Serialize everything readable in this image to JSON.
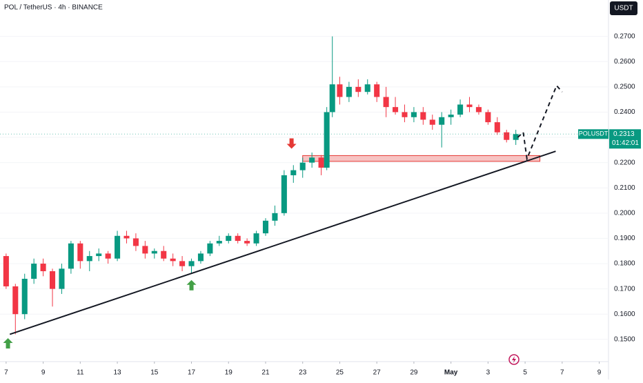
{
  "chart_data": {
    "type": "candlestick",
    "title": "POL / TetherUS · 4h · BINANCE",
    "currency": "USDT",
    "symbol": "POLUSDT",
    "last_price": {
      "value": 0.2313,
      "label": "0.2313"
    },
    "countdown": "01:42:01",
    "up_color": "#089981",
    "down_color": "#f23645",
    "xlim": [
      6.67,
      39.5
    ],
    "xticks": [
      7,
      9,
      11,
      13,
      15,
      17,
      19,
      21,
      23,
      25,
      27,
      29,
      {
        "value": 31,
        "label": "May"
      },
      {
        "value": 33,
        "label": "3"
      },
      {
        "value": 35,
        "label": "5"
      },
      {
        "value": 37,
        "label": "7"
      },
      {
        "value": 39,
        "label": "9"
      }
    ],
    "ylim": [
      0.1412,
      0.2844
    ],
    "yticks": [
      {
        "value": 0.15,
        "label": "0.1500"
      },
      {
        "value": 0.16,
        "label": "0.1600"
      },
      {
        "value": 0.17,
        "label": "0.1700"
      },
      {
        "value": 0.18,
        "label": "0.1800"
      },
      {
        "value": 0.19,
        "label": "0.1900"
      },
      {
        "value": 0.2,
        "label": "0.2000"
      },
      {
        "value": 0.21,
        "label": "0.2100"
      },
      {
        "value": 0.22,
        "label": "0.2200"
      },
      {
        "value": 0.23,
        "label": "0.2300"
      },
      {
        "value": 0.24,
        "label": "0.2400"
      },
      {
        "value": 0.25,
        "label": "0.2500"
      },
      {
        "value": 0.26,
        "label": "0.2600"
      },
      {
        "value": 0.27,
        "label": "0.2700"
      }
    ],
    "x": [
      7,
      7.5,
      8,
      8.5,
      9,
      9.5,
      10,
      10.5,
      11,
      11.5,
      12,
      12.5,
      13,
      13.5,
      14,
      14.5,
      15,
      15.5,
      16,
      16.5,
      17,
      17.5,
      18,
      18.5,
      19,
      19.5,
      20,
      20.5,
      21,
      21.5,
      22,
      22.5,
      23,
      23.5,
      24,
      24.3,
      24.6,
      25,
      25.5,
      26,
      26.5,
      27,
      27.5,
      28,
      28.5,
      29,
      29.5,
      30,
      30.5,
      31,
      31.5,
      32,
      32.5,
      33,
      33.5,
      34,
      34.5
    ],
    "open": [
      0.183,
      0.171,
      0.16,
      0.174,
      0.18,
      0.177,
      0.17,
      0.178,
      0.188,
      0.181,
      0.183,
      0.184,
      0.182,
      0.191,
      0.19,
      0.187,
      0.184,
      0.185,
      0.182,
      0.181,
      0.179,
      0.181,
      0.184,
      0.188,
      0.189,
      0.191,
      0.189,
      0.188,
      0.192,
      0.197,
      0.2,
      0.215,
      0.217,
      0.22,
      0.222,
      0.218,
      0.24,
      0.251,
      0.246,
      0.25,
      0.248,
      0.251,
      0.246,
      0.242,
      0.24,
      0.238,
      0.24,
      0.237,
      0.235,
      0.238,
      0.239,
      0.243,
      0.242,
      0.24,
      0.236,
      0.232,
      0.229
    ],
    "high": [
      0.184,
      0.172,
      0.176,
      0.182,
      0.182,
      0.178,
      0.18,
      0.189,
      0.189,
      0.185,
      0.186,
      0.185,
      0.193,
      0.193,
      0.192,
      0.189,
      0.186,
      0.187,
      0.184,
      0.183,
      0.182,
      0.185,
      0.189,
      0.191,
      0.192,
      0.192,
      0.19,
      0.193,
      0.198,
      0.203,
      0.217,
      0.219,
      0.222,
      0.224,
      0.223,
      0.242,
      0.27,
      0.254,
      0.252,
      0.253,
      0.253,
      0.252,
      0.25,
      0.246,
      0.243,
      0.242,
      0.242,
      0.239,
      0.24,
      0.241,
      0.245,
      0.246,
      0.243,
      0.241,
      0.238,
      0.233,
      0.233
    ],
    "low": [
      0.17,
      0.152,
      0.158,
      0.172,
      0.175,
      0.163,
      0.168,
      0.176,
      0.178,
      0.177,
      0.181,
      0.18,
      0.181,
      0.188,
      0.185,
      0.182,
      0.182,
      0.181,
      0.179,
      0.177,
      0.176,
      0.18,
      0.183,
      0.187,
      0.188,
      0.188,
      0.187,
      0.187,
      0.191,
      0.195,
      0.199,
      0.212,
      0.214,
      0.218,
      0.215,
      0.217,
      0.238,
      0.243,
      0.244,
      0.246,
      0.247,
      0.244,
      0.238,
      0.239,
      0.236,
      0.236,
      0.235,
      0.233,
      0.226,
      0.235,
      0.238,
      0.24,
      0.239,
      0.235,
      0.231,
      0.228,
      0.227
    ],
    "close": [
      0.171,
      0.16,
      0.174,
      0.18,
      0.177,
      0.17,
      0.178,
      0.188,
      0.181,
      0.183,
      0.184,
      0.182,
      0.191,
      0.19,
      0.187,
      0.184,
      0.185,
      0.182,
      0.181,
      0.179,
      0.181,
      0.184,
      0.188,
      0.189,
      0.191,
      0.189,
      0.188,
      0.192,
      0.197,
      0.2,
      0.215,
      0.217,
      0.22,
      0.222,
      0.218,
      0.24,
      0.251,
      0.246,
      0.25,
      0.248,
      0.251,
      0.246,
      0.242,
      0.24,
      0.238,
      0.24,
      0.237,
      0.235,
      0.238,
      0.239,
      0.243,
      0.242,
      0.24,
      0.236,
      0.232,
      0.229,
      0.2313
    ],
    "trendline": {
      "x": [
        7.2,
        36.65
      ],
      "y": [
        0.152,
        0.2245
      ]
    },
    "zone": {
      "x": [
        23,
        35.8
      ],
      "y": [
        0.2205,
        0.2228
      ]
    },
    "projection": {
      "x": [
        34.6,
        34.9,
        35.1,
        36.7,
        37.0
      ],
      "y": [
        0.23,
        0.232,
        0.2215,
        0.2505,
        0.248
      ]
    },
    "markers": [
      {
        "x": 7.1,
        "y": 0.1505,
        "dir": "up",
        "color": "#43a047"
      },
      {
        "x": 17.0,
        "y": 0.1735,
        "dir": "up",
        "color": "#43a047"
      },
      {
        "x": 22.4,
        "y": 0.2255,
        "dir": "down",
        "color": "#e53935"
      }
    ]
  }
}
